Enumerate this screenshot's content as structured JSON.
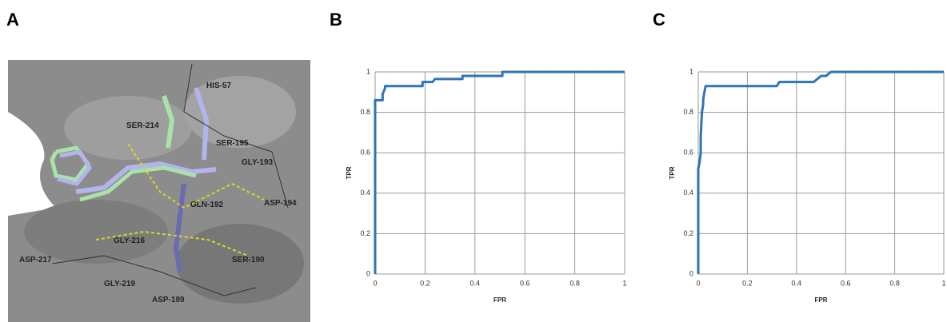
{
  "panels": [
    "A",
    "B",
    "C"
  ],
  "structure": {
    "residues": [
      "HIS-57",
      "SER-214",
      "SER-195",
      "GLY-193",
      "ASP-194",
      "GLN-192",
      "GLY-216",
      "ASP-217",
      "SER-190",
      "GLY-219",
      "ASP-189"
    ]
  },
  "chart_data": [
    {
      "type": "line",
      "xlabel": "FPR",
      "ylabel": "TPR",
      "x": [
        0,
        0,
        0.03,
        0.03,
        0.04,
        0.04,
        0.19,
        0.19,
        0.23,
        0.24,
        0.35,
        0.35,
        0.51,
        0.51,
        1
      ],
      "values": [
        0,
        0.86,
        0.86,
        0.89,
        0.92,
        0.93,
        0.93,
        0.95,
        0.95,
        0.965,
        0.965,
        0.98,
        0.98,
        1,
        1
      ],
      "color": "#2e75b6",
      "xlim": [
        0,
        1
      ],
      "ylim": [
        0,
        1
      ],
      "xticks": [
        0,
        0.2,
        0.4,
        0.6,
        0.8,
        1
      ],
      "yticks": [
        0,
        0.2,
        0.4,
        0.6,
        0.8,
        1
      ],
      "grid": true
    },
    {
      "type": "line",
      "xlabel": "FPR",
      "ylabel": "TPR",
      "x": [
        0,
        0,
        0.005,
        0.01,
        0.01,
        0.015,
        0.02,
        0.02,
        0.025,
        0.03,
        0.32,
        0.33,
        0.47,
        0.49,
        0.5,
        0.52,
        0.53,
        0.54,
        1
      ],
      "values": [
        0,
        0.52,
        0.55,
        0.6,
        0.68,
        0.8,
        0.84,
        0.86,
        0.9,
        0.93,
        0.93,
        0.95,
        0.95,
        0.97,
        0.98,
        0.98,
        0.99,
        1,
        1
      ],
      "color": "#2e75b6",
      "xlim": [
        0,
        1
      ],
      "ylim": [
        0,
        1
      ],
      "xticks": [
        0,
        0.2,
        0.4,
        0.6,
        0.8,
        1
      ],
      "yticks": [
        0,
        0.2,
        0.4,
        0.6,
        0.8,
        1
      ],
      "grid": true
    }
  ]
}
